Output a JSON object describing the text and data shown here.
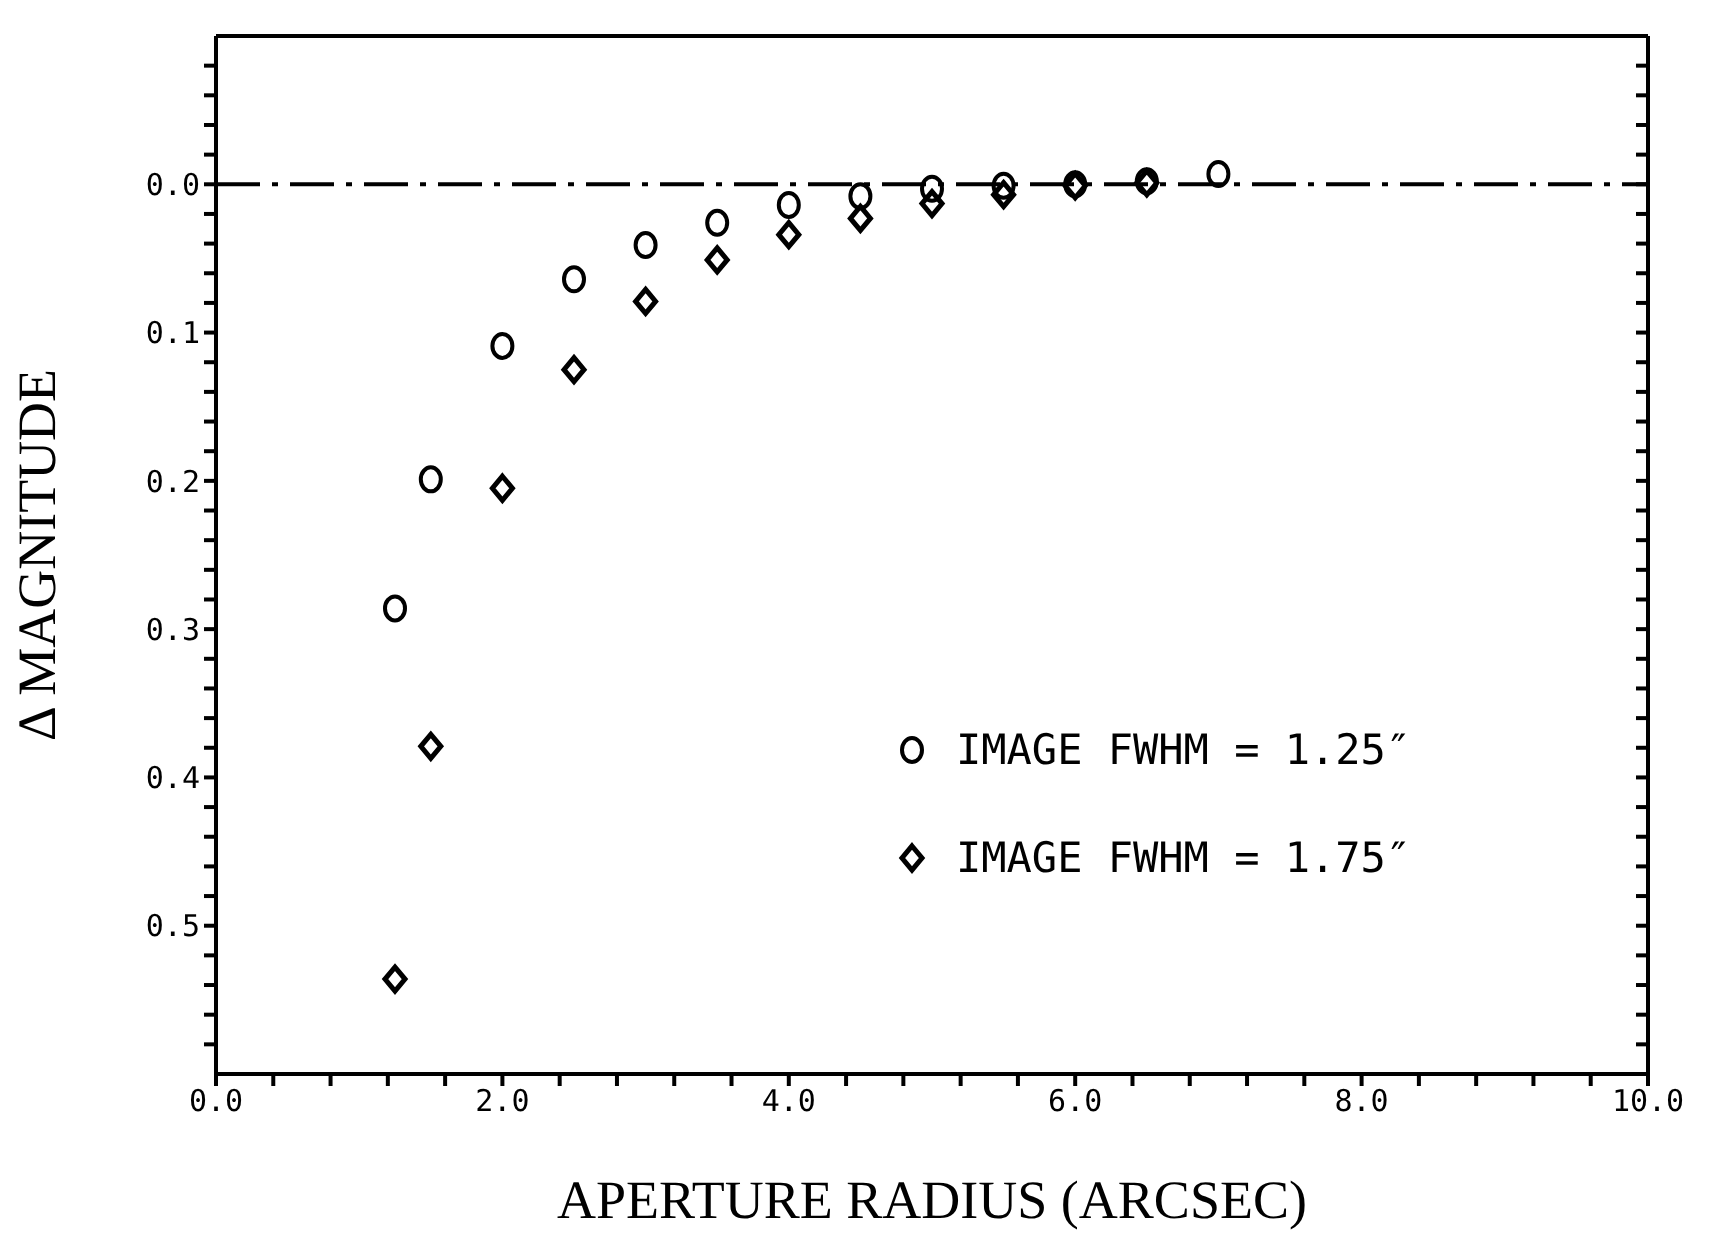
{
  "chart_data": {
    "type": "scatter",
    "xlabel": "APERTURE RADIUS (ARCSEC)",
    "ylabel": "Δ MAGNITUDE",
    "xlim": [
      0,
      10
    ],
    "ylim": [
      0.6,
      -0.1
    ],
    "xticks": [
      {
        "value": 0,
        "label": "0.0"
      },
      {
        "value": 0.4,
        "label": null
      },
      {
        "value": 0.8,
        "label": null
      },
      {
        "value": 1.2,
        "label": null
      },
      {
        "value": 1.6,
        "label": null
      },
      {
        "value": 2,
        "label": "2.0"
      },
      {
        "value": 2.4,
        "label": null
      },
      {
        "value": 2.8,
        "label": null
      },
      {
        "value": 3.2,
        "label": null
      },
      {
        "value": 3.6,
        "label": null
      },
      {
        "value": 4,
        "label": "4.0"
      },
      {
        "value": 4.4,
        "label": null
      },
      {
        "value": 4.8,
        "label": null
      },
      {
        "value": 5.2,
        "label": null
      },
      {
        "value": 5.6,
        "label": null
      },
      {
        "value": 6,
        "label": "6.0"
      },
      {
        "value": 6.4,
        "label": null
      },
      {
        "value": 6.8,
        "label": null
      },
      {
        "value": 7.2,
        "label": null
      },
      {
        "value": 7.6,
        "label": null
      },
      {
        "value": 8,
        "label": "8.0"
      },
      {
        "value": 8.4,
        "label": null
      },
      {
        "value": 8.8,
        "label": null
      },
      {
        "value": 9.2,
        "label": null
      },
      {
        "value": 9.6,
        "label": null
      },
      {
        "value": 10,
        "label": "10.0"
      }
    ],
    "yticks": [
      {
        "value": -0.08,
        "label": null
      },
      {
        "value": -0.06,
        "label": null
      },
      {
        "value": -0.04,
        "label": null
      },
      {
        "value": -0.02,
        "label": null
      },
      {
        "value": 0,
        "label": "0.0"
      },
      {
        "value": 0.02,
        "label": null
      },
      {
        "value": 0.04,
        "label": null
      },
      {
        "value": 0.06,
        "label": null
      },
      {
        "value": 0.08,
        "label": null
      },
      {
        "value": 0.1,
        "label": "0.1"
      },
      {
        "value": 0.12,
        "label": null
      },
      {
        "value": 0.14,
        "label": null
      },
      {
        "value": 0.16,
        "label": null
      },
      {
        "value": 0.18,
        "label": null
      },
      {
        "value": 0.2,
        "label": "0.2"
      },
      {
        "value": 0.22,
        "label": null
      },
      {
        "value": 0.24,
        "label": null
      },
      {
        "value": 0.26,
        "label": null
      },
      {
        "value": 0.28,
        "label": null
      },
      {
        "value": 0.3,
        "label": "0.3"
      },
      {
        "value": 0.32,
        "label": null
      },
      {
        "value": 0.34,
        "label": null
      },
      {
        "value": 0.36,
        "label": null
      },
      {
        "value": 0.38,
        "label": null
      },
      {
        "value": 0.4,
        "label": "0.4"
      },
      {
        "value": 0.42,
        "label": null
      },
      {
        "value": 0.44,
        "label": null
      },
      {
        "value": 0.46,
        "label": null
      },
      {
        "value": 0.48,
        "label": null
      },
      {
        "value": 0.5,
        "label": "0.5"
      },
      {
        "value": 0.52,
        "label": null
      },
      {
        "value": 0.54,
        "label": null
      },
      {
        "value": 0.56,
        "label": null
      },
      {
        "value": 0.58,
        "label": null
      }
    ],
    "legend": "bottom right",
    "ref_lines": [
      {
        "axis": "y",
        "value": 0,
        "color": "#000000",
        "line_style": "dashed"
      }
    ],
    "series": [
      {
        "name": "IMAGE FWHM = 1.25″",
        "color": "#000000",
        "marker": "circle",
        "x": [
          1.25,
          1.5,
          2,
          2.5,
          3,
          3.5,
          4,
          4.5,
          5,
          5.5,
          6,
          6.5,
          7
        ],
        "values": [
          0.286,
          0.199,
          0.109,
          0.064,
          0.041,
          0.026,
          0.014,
          0.008,
          0.003,
          0.001,
          0,
          -0.002,
          -0.007
        ]
      },
      {
        "name": "IMAGE FWHM = 1.75″",
        "color": "#000000",
        "marker": "diamond",
        "x": [
          1.25,
          1.5,
          2,
          2.5,
          3,
          3.5,
          4,
          4.5,
          5,
          5.5,
          6,
          6.5
        ],
        "values": [
          0.536,
          0.379,
          0.205,
          0.125,
          0.079,
          0.051,
          0.034,
          0.023,
          0.013,
          0.007,
          0.001,
          -0.001
        ]
      }
    ]
  }
}
